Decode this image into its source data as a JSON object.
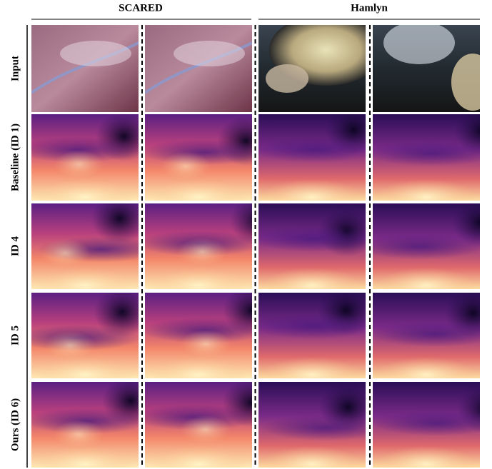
{
  "header": {
    "columns": [
      "SCARED",
      "Hamlyn"
    ]
  },
  "rows": [
    "Input",
    "Baseline (ID 1)",
    "ID 4",
    "ID 5",
    "Ours (ID 6)"
  ]
}
